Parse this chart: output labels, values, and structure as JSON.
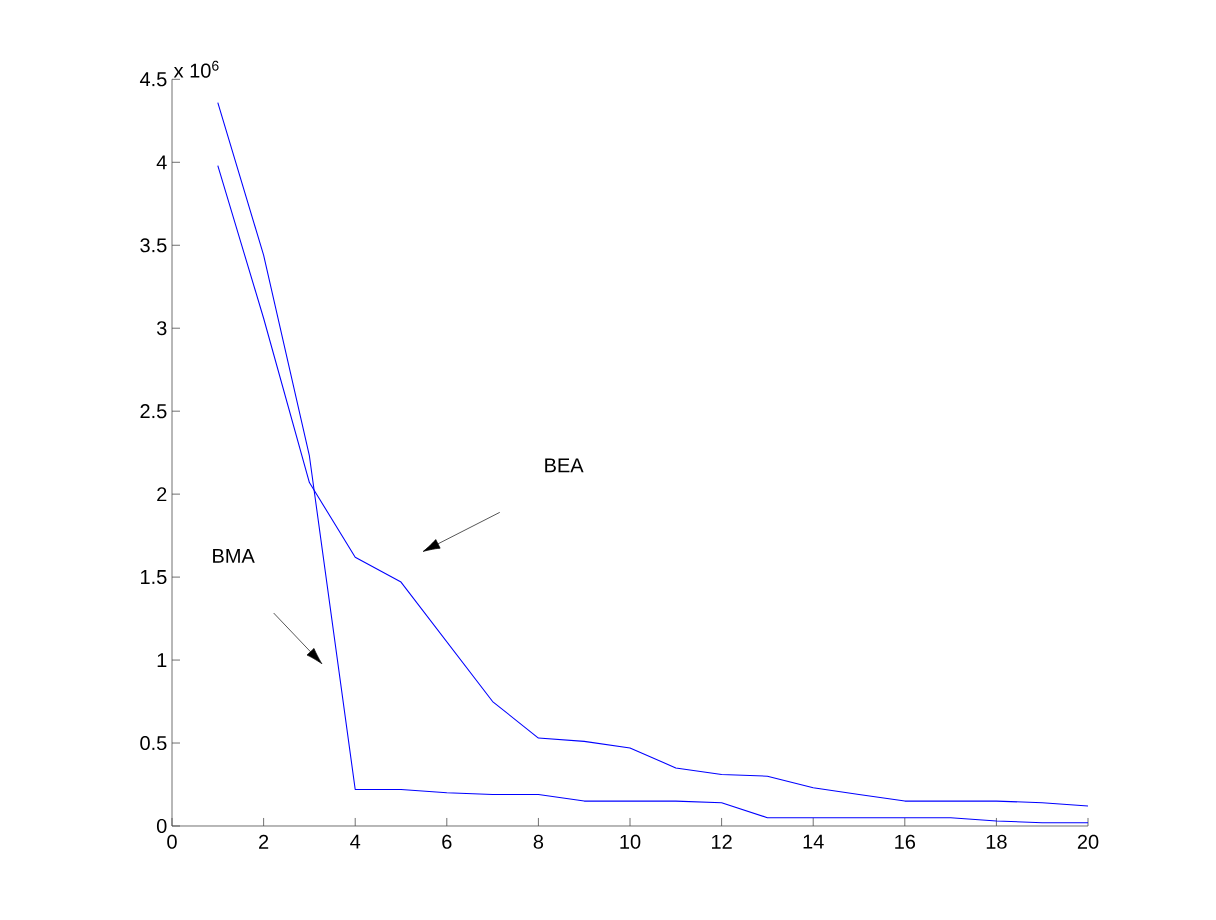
{
  "chart_data": {
    "type": "line",
    "x": [
      1,
      2,
      3,
      4,
      5,
      6,
      7,
      8,
      9,
      10,
      11,
      12,
      13,
      14,
      15,
      16,
      17,
      18,
      19,
      20
    ],
    "series": [
      {
        "color": "#0000ff",
        "values": [
          4.36,
          3.44,
          2.23,
          0.22,
          0.22,
          0.2,
          0.19,
          0.19,
          0.15,
          0.15,
          0.15,
          0.14,
          0.05,
          0.05,
          0.05,
          0.05,
          0.05,
          0.03,
          0.02,
          0.02
        ]
      },
      {
        "color": "#0000ff",
        "values": [
          3.98,
          3.06,
          2.07,
          1.62,
          1.47,
          1.11,
          0.75,
          0.53,
          0.51,
          0.47,
          0.35,
          0.31,
          0.3,
          0.23,
          0.19,
          0.15,
          0.15,
          0.15,
          0.14,
          0.12
        ]
      }
    ],
    "xlim": [
      0,
      20
    ],
    "xticks": [
      0,
      2,
      4,
      6,
      8,
      10,
      12,
      14,
      16,
      18,
      20
    ],
    "ylim": [
      0,
      4.5
    ],
    "yticks": [
      0,
      0.5,
      1,
      1.5,
      2,
      2.5,
      3,
      3.5,
      4,
      4.5
    ],
    "annotations": [
      "x 10$^{6}$",
      "BMA",
      "BEA"
    ],
    "grid": false,
    "marker": "none",
    "line_style": "solid"
  }
}
